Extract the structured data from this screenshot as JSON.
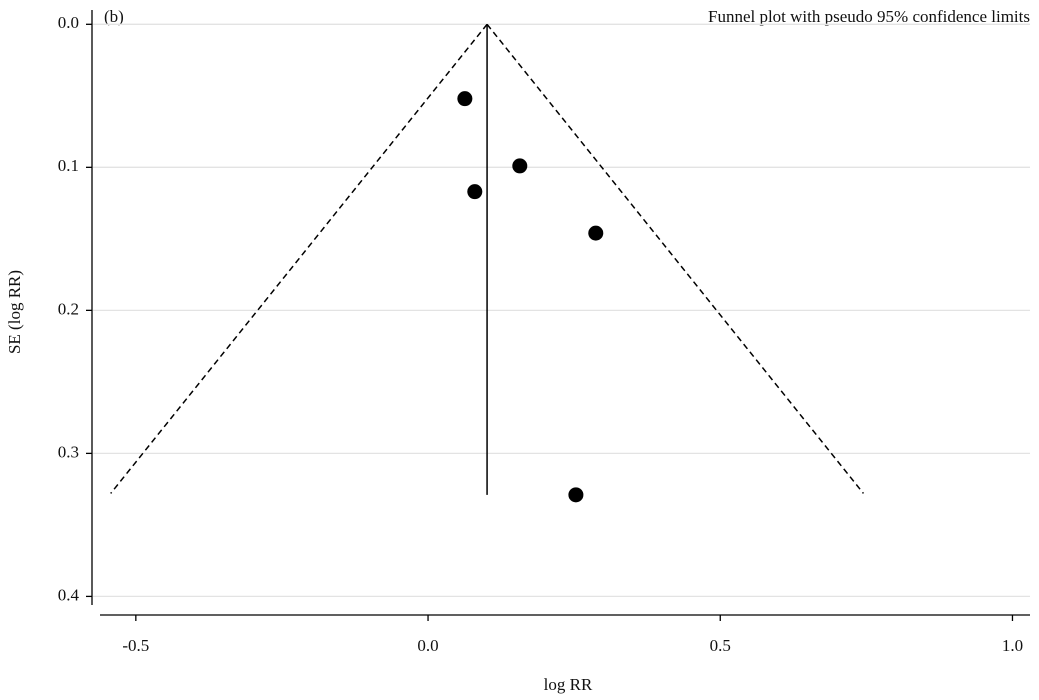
{
  "chart_data": {
    "type": "funnel",
    "panel_label": "(b)",
    "title": "Funnel plot with pseudo 95% confidence limits",
    "x_label": "log RR",
    "y_label": "SE (log RR)",
    "x": [
      0.063,
      0.157,
      0.08,
      0.287,
      0.253
    ],
    "values": [
      0.052,
      0.099,
      0.117,
      0.146,
      0.329
    ],
    "color": "#000000",
    "reference_line": {
      "x": [
        0.101,
        0.101
      ],
      "y": [
        0,
        0.329
      ]
    },
    "lower_limit": {
      "x": [
        0.101,
        -0.543
      ],
      "y": [
        0,
        0.328
      ]
    },
    "upper_limit": {
      "x": [
        0.101,
        0.745
      ],
      "y": [
        0,
        0.328
      ]
    },
    "xlim": [
      -0.575,
      1.03
    ],
    "ylim": [
      0.413,
      -0.01
    ],
    "xticks": [
      -0.5,
      {
        "value": 0,
        "label": "0.0"
      },
      0.5,
      {
        "value": 1,
        "label": "1.0"
      }
    ],
    "yticks": [
      {
        "value": 0,
        "label": "0.0"
      },
      0.1,
      0.2,
      0.3,
      0.4
    ],
    "grid": true
  }
}
